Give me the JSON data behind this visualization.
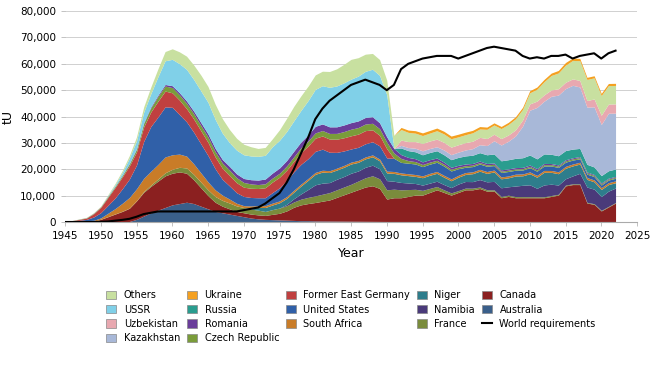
{
  "title": "",
  "xlabel": "Year",
  "ylabel": "tU",
  "xlim": [
    1945,
    2025
  ],
  "ylim": [
    0,
    80000
  ],
  "yticks": [
    0,
    10000,
    20000,
    30000,
    40000,
    50000,
    60000,
    70000,
    80000
  ],
  "xticks": [
    1945,
    1950,
    1955,
    1960,
    1965,
    1970,
    1975,
    1980,
    1985,
    1990,
    1995,
    2000,
    2005,
    2010,
    2015,
    2020,
    2025
  ],
  "colors": {
    "Australia": "#3a5f8a",
    "Canada": "#8b2020",
    "France": "#7a8c3c",
    "Namibia": "#4a3a7a",
    "Niger": "#2e7d8c",
    "South Africa": "#c97c28",
    "United States": "#3060a8",
    "Former East Germany": "#c04040",
    "Czech Republic": "#7a9c3a",
    "Romania": "#6a3d9a",
    "Russia": "#2a9d8f",
    "Kazakhstan": "#a8b8d8",
    "Uzbekistan": "#e8a8b0",
    "USSR": "#80d0e8",
    "Others": "#c8e0a0",
    "Ukraine": "#f4a020"
  },
  "legend_colors": {
    "Others": "#c8e0a0",
    "USSR": "#80d0e8",
    "Uzbekistan": "#e8a8b0",
    "Kazakhstan": "#a8b8d8",
    "Ukraine": "#f4a020",
    "Russia": "#2a9d8f",
    "Romania": "#6a3d9a",
    "Czech Republic": "#7a9c3a",
    "Former East Germany": "#c04040",
    "United States": "#3060a8",
    "South Africa": "#c97c28",
    "Niger": "#2e7d8c",
    "Namibia": "#4a3a7a",
    "France": "#7a8c3c",
    "Canada": "#8b2020",
    "Australia": "#3a5f8a"
  },
  "background_color": "#ffffff",
  "grid_color": "#d0d0d0",
  "spine_color": "#aaaaaa"
}
